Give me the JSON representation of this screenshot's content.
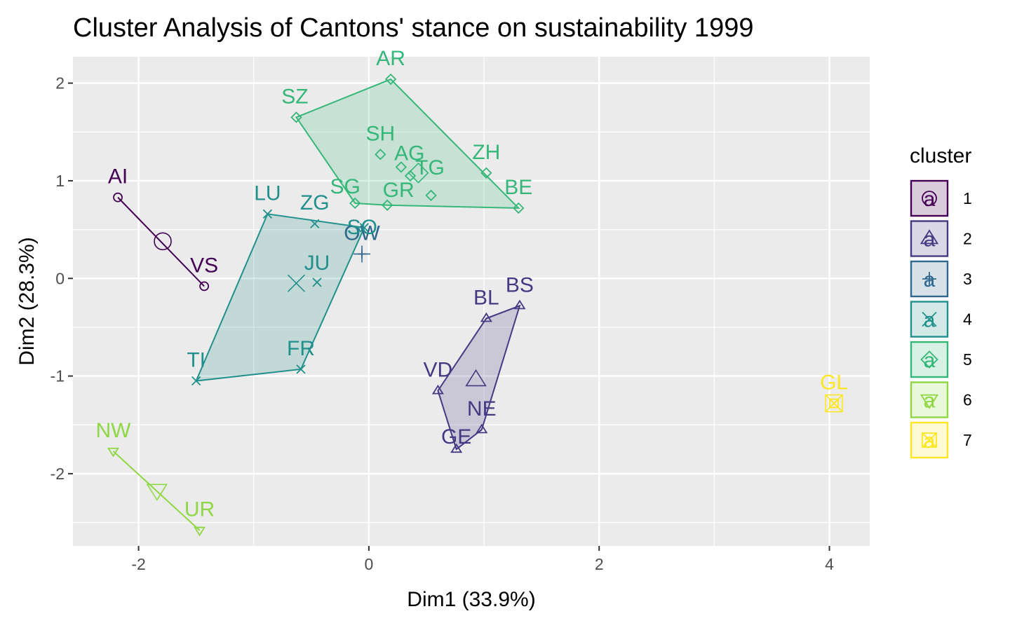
{
  "chart_data": {
    "type": "scatter",
    "title": "Cluster Analysis of Cantons' stance on sustainability 1999",
    "xlabel": "Dim1 (33.9%)",
    "ylabel": "Dim2 (28.3%)",
    "xlim": [
      -2.57,
      4.35
    ],
    "ylim": [
      -2.74,
      2.27
    ],
    "x_ticks": [
      -2,
      0,
      2,
      4
    ],
    "y_ticks": [
      -2,
      -1,
      0,
      1,
      2
    ],
    "x_tick_labels": [
      "-2",
      "0",
      "2",
      "4"
    ],
    "y_tick_labels": [
      "-2",
      "-1",
      "0",
      "1",
      "2"
    ],
    "grid": true,
    "legend": {
      "title": "cluster",
      "placement": "right"
    },
    "clusters": [
      {
        "id": "1",
        "color": "#440154",
        "shape": "circle",
        "center": [
          -1.79,
          0.38
        ],
        "hull": [
          "AI",
          "VS"
        ],
        "points": [
          {
            "label": "AI",
            "x": -2.18,
            "y": 0.83
          },
          {
            "label": "VS",
            "x": -1.43,
            "y": -0.08
          }
        ]
      },
      {
        "id": "2",
        "color": "#443A83",
        "shape": "triangle",
        "center": [
          0.93,
          -1.04
        ],
        "hull": [
          "BS",
          "NE",
          "GE",
          "VD",
          "BL"
        ],
        "points": [
          {
            "label": "BL",
            "x": 1.02,
            "y": -0.41
          },
          {
            "label": "BS",
            "x": 1.31,
            "y": -0.28
          },
          {
            "label": "VD",
            "x": 0.6,
            "y": -1.15
          },
          {
            "label": "NE",
            "x": 0.98,
            "y": -1.55
          },
          {
            "label": "GE",
            "x": 0.76,
            "y": -1.75
          }
        ]
      },
      {
        "id": "3",
        "color": "#31688E",
        "shape": "plus",
        "center": [
          -0.06,
          0.25
        ],
        "hull": [],
        "points": [
          {
            "label": "OW",
            "x": -0.06,
            "y": 0.25
          }
        ]
      },
      {
        "id": "4",
        "color": "#21908C",
        "shape": "cross",
        "center": [
          -0.63,
          -0.05
        ],
        "hull": [
          "LU",
          "SO",
          "FR",
          "TI"
        ],
        "points": [
          {
            "label": "LU",
            "x": -0.88,
            "y": 0.66
          },
          {
            "label": "ZG",
            "x": -0.47,
            "y": 0.56
          },
          {
            "label": "SO",
            "x": -0.04,
            "y": 0.52
          },
          {
            "label": "JU",
            "x": -0.45,
            "y": -0.04
          },
          {
            "label": "FR",
            "x": -0.59,
            "y": -0.93
          },
          {
            "label": "TI",
            "x": -1.5,
            "y": -1.05
          }
        ]
      },
      {
        "id": "5",
        "color": "#35B779",
        "shape": "diamond",
        "center": [
          0.43,
          1.08
        ],
        "hull": [
          "AR",
          "BE",
          "GR",
          "SG",
          "SZ"
        ],
        "points": [
          {
            "label": "AR",
            "x": 0.19,
            "y": 2.04
          },
          {
            "label": "SZ",
            "x": -0.63,
            "y": 1.65
          },
          {
            "label": "SH",
            "x": 0.1,
            "y": 1.27
          },
          {
            "label": "AG",
            "x": 0.28,
            "y": 1.14
          },
          {
            "label": "TG",
            "x": 0.36,
            "y": 1.05
          },
          {
            "label": "ZH",
            "x": 1.02,
            "y": 1.08
          },
          {
            "label": "SG",
            "x": -0.12,
            "y": 0.77
          },
          {
            "label": "GR",
            "x": 0.16,
            "y": 0.75
          },
          {
            "label": "BE",
            "x": 1.3,
            "y": 0.72
          }
        ],
        "extra_points": [
          {
            "x": 0.54,
            "y": 0.85
          }
        ]
      },
      {
        "id": "6",
        "color": "#8FD744",
        "shape": "triangle-down",
        "center": [
          -1.84,
          -2.17
        ],
        "hull": [
          "NW",
          "UR"
        ],
        "points": [
          {
            "label": "NW",
            "x": -2.22,
            "y": -1.77
          },
          {
            "label": "UR",
            "x": -1.47,
            "y": -2.58
          }
        ]
      },
      {
        "id": "7",
        "color": "#FDE725",
        "shape": "square-x",
        "center": [
          4.04,
          -1.28
        ],
        "hull": [],
        "points": [
          {
            "label": "GL",
            "x": 4.04,
            "y": -1.28
          }
        ]
      }
    ]
  }
}
